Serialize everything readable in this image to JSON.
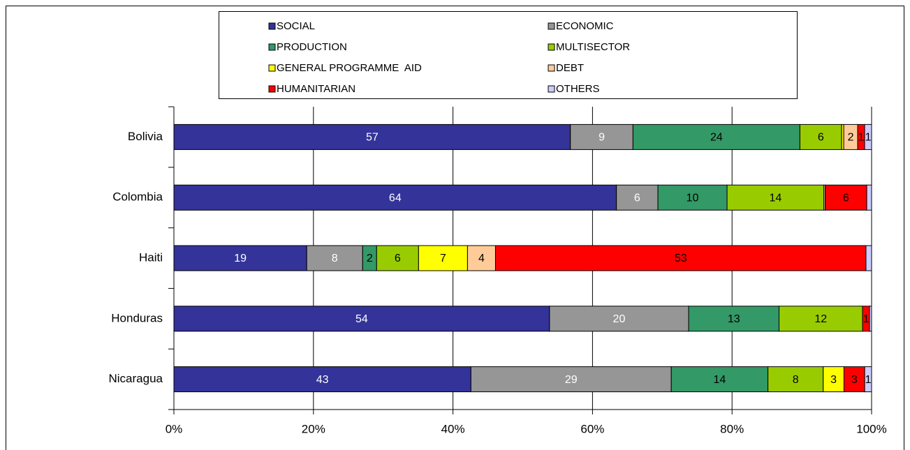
{
  "chart_data": {
    "type": "stacked-bar-horizontal-percent",
    "categories": [
      "Bolivia",
      "Colombia",
      "Haiti",
      "Honduras",
      "Nicaragua"
    ],
    "series": [
      {
        "name": "SOCIAL",
        "color": "#333399",
        "label_color": "#ffffff",
        "values": [
          57,
          64,
          19,
          54,
          43
        ],
        "value_labels": [
          "57",
          "64",
          "19",
          "54",
          "43"
        ]
      },
      {
        "name": "ECONOMIC",
        "color": "#969696",
        "label_color": "#ffffff",
        "values": [
          9,
          6,
          8,
          20,
          29
        ],
        "value_labels": [
          "9",
          "6",
          "8",
          "20",
          "29"
        ]
      },
      {
        "name": "PRODUCTION",
        "color": "#339966",
        "label_color": "#000000",
        "values": [
          24,
          10,
          2,
          13,
          14
        ],
        "value_labels": [
          "24",
          "10",
          "2",
          "13",
          "14"
        ]
      },
      {
        "name": "MULTISECTOR",
        "color": "#99cc00",
        "label_color": "#000000",
        "values": [
          6,
          14,
          6,
          12,
          8
        ],
        "value_labels": [
          "6",
          "14",
          "6",
          "12",
          "8"
        ]
      },
      {
        "name": "GENERAL PROGRAMME  AID",
        "color": "#ffff00",
        "label_color": "#000000",
        "values": [
          0.3,
          0,
          7,
          0,
          3
        ],
        "value_labels": [
          null,
          null,
          "7",
          null,
          "3"
        ]
      },
      {
        "name": "DEBT",
        "color": "#ffcc99",
        "label_color": "#000000",
        "values": [
          2,
          0.2,
          4,
          0,
          0
        ],
        "value_labels": [
          "2",
          null,
          "4",
          null,
          null
        ]
      },
      {
        "name": "HUMANITARIAN",
        "color": "#ff0000",
        "label_color": "#000000",
        "values": [
          1,
          6,
          53,
          1,
          3
        ],
        "value_labels": [
          "1",
          "6",
          "53",
          "1",
          "3"
        ]
      },
      {
        "name": "OTHERS",
        "color": "#ccccff",
        "label_color": "#000000",
        "values": [
          1,
          0.7,
          0.8,
          0.3,
          1
        ],
        "value_labels": [
          "1",
          null,
          null,
          null,
          "1"
        ]
      }
    ],
    "xlim": [
      0,
      100
    ],
    "xticks": [
      {
        "value": 0,
        "label": "0%"
      },
      {
        "value": 20,
        "label": "20%"
      },
      {
        "value": 40,
        "label": "40%"
      },
      {
        "value": 60,
        "label": "60%"
      },
      {
        "value": 80,
        "label": "80%"
      },
      {
        "value": 100,
        "label": "100%"
      }
    ],
    "grid": true,
    "legend": "top"
  }
}
